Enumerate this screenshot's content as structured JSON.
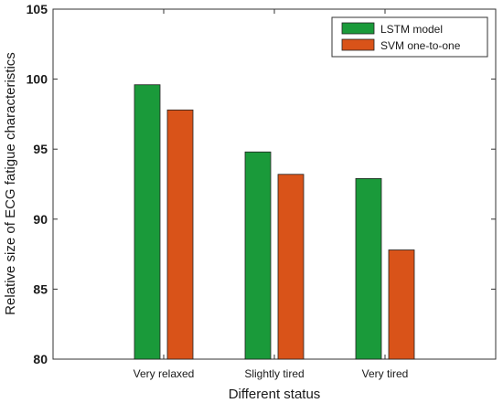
{
  "chart_data": {
    "type": "bar",
    "title": "",
    "xlabel": "Different status",
    "ylabel": "Relative size of ECG fatigue characteristics",
    "categories": [
      "Very relaxed",
      "Slightly tired",
      "Very tired"
    ],
    "ylim": [
      80,
      105
    ],
    "yticks": [
      80,
      85,
      90,
      95,
      100,
      105
    ],
    "series": [
      {
        "name": "LSTM model",
        "color": "#1a9a3a",
        "values": [
          99.6,
          94.8,
          92.9
        ]
      },
      {
        "name": "SVM one-to-one",
        "color": "#d95319",
        "values": [
          97.8,
          93.2,
          87.8
        ]
      }
    ],
    "grid": false,
    "legend_position": "top-right"
  }
}
